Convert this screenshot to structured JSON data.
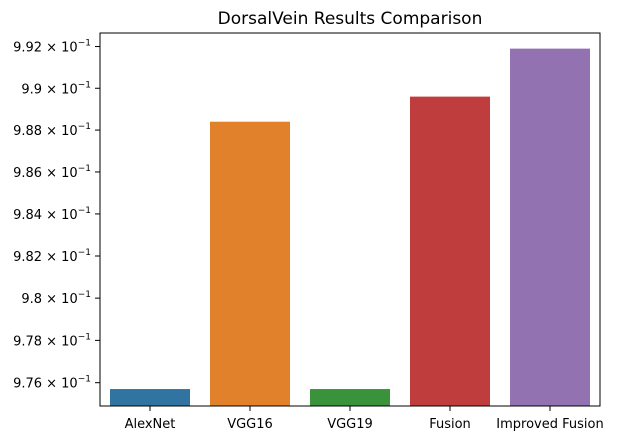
{
  "chart_data": {
    "type": "bar",
    "title": "DorsalVein Results Comparison",
    "xlabel": "",
    "ylabel": "",
    "yscale": "log",
    "categories": [
      "AlexNet",
      "VGG16",
      "VGG19",
      "Fusion",
      "Improved Fusion"
    ],
    "values": [
      0.9757,
      0.9884,
      0.9757,
      0.9896,
      0.9919
    ],
    "colors": [
      "#3274a1",
      "#e1812c",
      "#3a923a",
      "#c03d3e",
      "#9372b2"
    ],
    "ylim": [
      0.9749,
      0.99265
    ],
    "yticks": [
      0.976,
      0.978,
      0.98,
      0.982,
      0.984,
      0.986,
      0.988,
      0.99,
      0.992
    ],
    "ytick_labels": [
      {
        "mantissa": "9.76",
        "base": "10",
        "exp": "−1"
      },
      {
        "mantissa": "9.78",
        "base": "10",
        "exp": "−1"
      },
      {
        "mantissa": "9.8",
        "base": "10",
        "exp": "−1"
      },
      {
        "mantissa": "9.82",
        "base": "10",
        "exp": "−1"
      },
      {
        "mantissa": "9.84",
        "base": "10",
        "exp": "−1"
      },
      {
        "mantissa": "9.86",
        "base": "10",
        "exp": "−1"
      },
      {
        "mantissa": "9.88",
        "base": "10",
        "exp": "−1"
      },
      {
        "mantissa": "9.9",
        "base": "10",
        "exp": "−1"
      },
      {
        "mantissa": "9.92",
        "base": "10",
        "exp": "−1"
      }
    ],
    "grid": false,
    "legend": "none"
  }
}
